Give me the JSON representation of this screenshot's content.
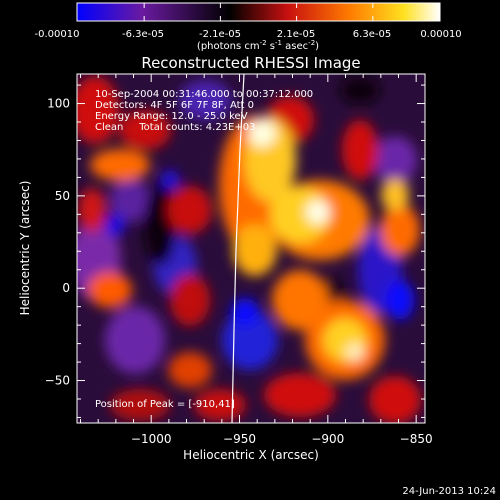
{
  "chart_data": {
    "type": "heatmap",
    "title": "Reconstructed RHESSI Image",
    "colorbar": {
      "tick_labels": [
        "-0.00010",
        "-6.3e-05",
        "-2.1e-05",
        "2.1e-05",
        "6.3e-05",
        "0.00010"
      ],
      "range": [
        -0.0001,
        0.0001
      ],
      "unit_label": "(photons cm",
      "unit_sup1": "-2",
      "unit_mid": " s",
      "unit_sup2": "-1",
      "unit_mid2": " asec",
      "unit_sup3": "-2",
      "unit_end": ")",
      "colormap": [
        "#0000ff",
        "#6a1aa0",
        "#000000",
        "#c81010",
        "#ff7a00",
        "#ffe020",
        "#ffffff"
      ]
    },
    "xlabel": "Heliocentric X (arcsec)",
    "ylabel": "Heliocentric Y (arcsec)",
    "xlim": [
      -1042,
      -845
    ],
    "ylim": [
      -73,
      116
    ],
    "xticks": [
      -1000,
      -950,
      -900,
      -850
    ],
    "xtick_labels": [
      "−1000",
      "−950",
      "−900",
      "−850"
    ],
    "yticks": [
      -50,
      0,
      50,
      100
    ],
    "ytick_labels": [
      "−50",
      "0",
      "50",
      "100"
    ],
    "annotations": [
      "10-Sep-2004 00:31:46.000 to 00:37:12.000",
      "Detectors: 4F 5F 6F 7F 8F, Att 0",
      "Energy Range: 12.0 - 25.0 keV",
      "Clean     Total counts: 4.23E+03"
    ],
    "peak_label": "Position of Peak = [-910,41]",
    "peak": [
      -910,
      41
    ],
    "limb_line": true
  },
  "footer": {
    "timestamp": "24-Jun-2013 10:24"
  }
}
